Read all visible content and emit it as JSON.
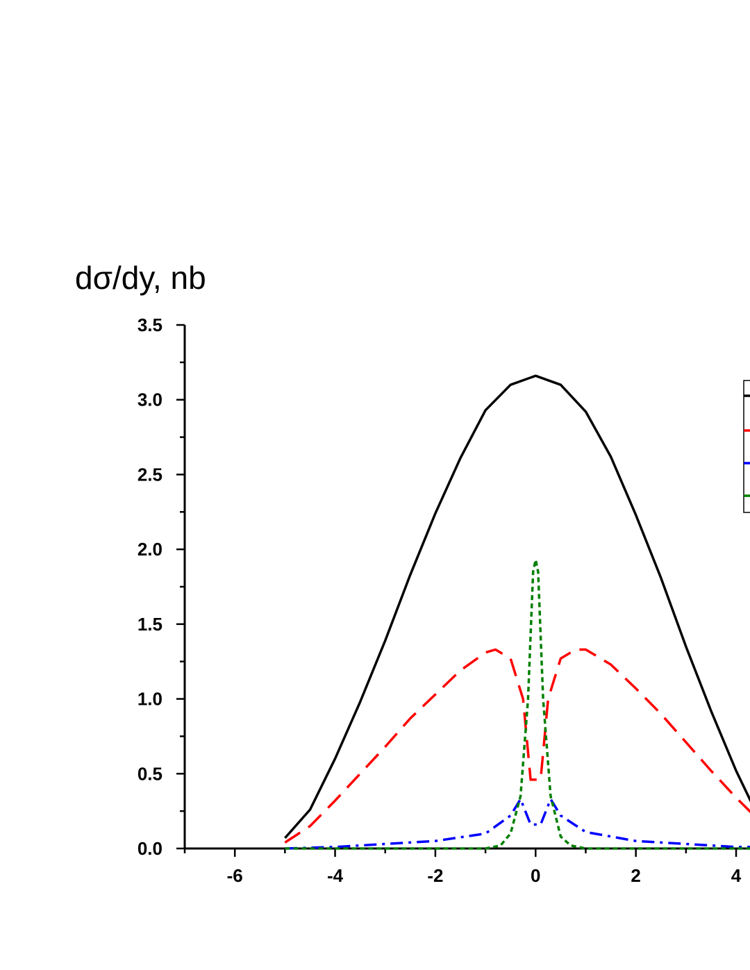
{
  "chart_data": {
    "type": "line",
    "title": "",
    "xlabel": "",
    "ylabel": "dσ/dy, nb",
    "xlim": [
      -7,
      4.5
    ],
    "ylim": [
      0,
      3.5
    ],
    "x_ticks": [
      -6,
      -4,
      -2,
      0,
      2,
      4
    ],
    "x_tick_labels": [
      "-6",
      "-4",
      "-2",
      "0",
      "2",
      "4"
    ],
    "y_ticks": [
      0.0,
      0.5,
      1.0,
      1.5,
      2.0,
      2.5,
      3.0,
      3.5
    ],
    "y_tick_labels": [
      "0.0",
      "0.5",
      "1.0",
      "1.5",
      "2.0",
      "2.5",
      "3.0",
      "3.5"
    ],
    "grid": false,
    "legend_placement": "right (partially cut off)",
    "series": [
      {
        "color": "#000000",
        "style": "solid",
        "points": [
          [
            -5.0,
            0.07
          ],
          [
            -4.5,
            0.26
          ],
          [
            -4.0,
            0.6
          ],
          [
            -3.5,
            0.98
          ],
          [
            -3.0,
            1.39
          ],
          [
            -2.5,
            1.83
          ],
          [
            -2.0,
            2.24
          ],
          [
            -1.5,
            2.61
          ],
          [
            -1.0,
            2.93
          ],
          [
            -0.5,
            3.1
          ],
          [
            0.0,
            3.16
          ],
          [
            0.5,
            3.1
          ],
          [
            1.0,
            2.92
          ],
          [
            1.5,
            2.62
          ],
          [
            2.0,
            2.23
          ],
          [
            2.5,
            1.81
          ],
          [
            3.0,
            1.35
          ],
          [
            3.5,
            0.92
          ],
          [
            4.0,
            0.52
          ],
          [
            4.3,
            0.31
          ]
        ]
      },
      {
        "color": "#ff0000",
        "style": "dashed",
        "points": [
          [
            -5.0,
            0.04
          ],
          [
            -4.5,
            0.15
          ],
          [
            -4.0,
            0.32
          ],
          [
            -3.5,
            0.5
          ],
          [
            -3.0,
            0.68
          ],
          [
            -2.5,
            0.87
          ],
          [
            -2.0,
            1.03
          ],
          [
            -1.5,
            1.19
          ],
          [
            -1.0,
            1.31
          ],
          [
            -0.8,
            1.33
          ],
          [
            -0.5,
            1.27
          ],
          [
            -0.25,
            1.0
          ],
          [
            -0.1,
            0.46
          ],
          [
            0.1,
            0.46
          ],
          [
            0.25,
            1.0
          ],
          [
            0.5,
            1.27
          ],
          [
            0.8,
            1.33
          ],
          [
            1.0,
            1.33
          ],
          [
            1.5,
            1.23
          ],
          [
            2.0,
            1.07
          ],
          [
            2.5,
            0.9
          ],
          [
            3.0,
            0.71
          ],
          [
            3.5,
            0.52
          ],
          [
            4.0,
            0.34
          ],
          [
            4.3,
            0.24
          ]
        ]
      },
      {
        "color": "#0000ff",
        "style": "dash-dot",
        "points": [
          [
            -5.0,
            0.0
          ],
          [
            -4.0,
            0.01
          ],
          [
            -3.0,
            0.03
          ],
          [
            -2.0,
            0.05
          ],
          [
            -1.0,
            0.1
          ],
          [
            -0.5,
            0.22
          ],
          [
            -0.3,
            0.33
          ],
          [
            -0.1,
            0.16
          ],
          [
            0.1,
            0.16
          ],
          [
            0.3,
            0.33
          ],
          [
            0.5,
            0.22
          ],
          [
            1.0,
            0.11
          ],
          [
            2.0,
            0.05
          ],
          [
            3.0,
            0.03
          ],
          [
            4.0,
            0.01
          ],
          [
            4.3,
            0.01
          ]
        ]
      },
      {
        "color": "#008000",
        "style": "dotted",
        "points": [
          [
            -5.0,
            0.0
          ],
          [
            -2.0,
            0.0
          ],
          [
            -1.0,
            0.0
          ],
          [
            -0.7,
            0.02
          ],
          [
            -0.5,
            0.1
          ],
          [
            -0.3,
            0.35
          ],
          [
            -0.15,
            1.0
          ],
          [
            -0.05,
            1.85
          ],
          [
            0.0,
            1.93
          ],
          [
            0.05,
            1.85
          ],
          [
            0.15,
            1.0
          ],
          [
            0.3,
            0.35
          ],
          [
            0.5,
            0.08
          ],
          [
            0.7,
            0.02
          ],
          [
            1.0,
            0.0
          ],
          [
            2.0,
            0.0
          ],
          [
            4.3,
            0.0
          ]
        ]
      }
    ]
  }
}
